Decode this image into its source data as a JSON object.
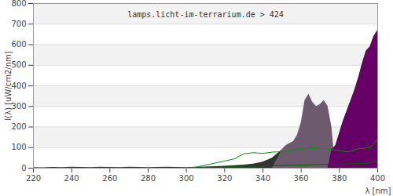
{
  "chart_data": {
    "type": "area",
    "title": "lamps.licht-im-terrarium.de > 424",
    "x_label": "λ [nm]",
    "y_label": "I(λ) [uW/cm2/nm]",
    "x": [
      220,
      225,
      230,
      235,
      240,
      245,
      250,
      255,
      260,
      265,
      270,
      275,
      280,
      285,
      290,
      295,
      300,
      305,
      310,
      315,
      320,
      325,
      330,
      335,
      340,
      345,
      350,
      352,
      354,
      356,
      358,
      360,
      362,
      364,
      366,
      368,
      370,
      372,
      374,
      376,
      378,
      380,
      382,
      384,
      386,
      388,
      390,
      392,
      394,
      396,
      398,
      400
    ],
    "series": [
      {
        "type": "area",
        "color": "#333333",
        "values": [
          3,
          2,
          4,
          3,
          5,
          4,
          3,
          5,
          4,
          3,
          5,
          4,
          3,
          4,
          5,
          4,
          3,
          5,
          6,
          8,
          10,
          12,
          15,
          20,
          30,
          50,
          90,
          null,
          null,
          null,
          null,
          null,
          null,
          null,
          null,
          null,
          null,
          null,
          null,
          null,
          null,
          null,
          null,
          null,
          null,
          null,
          null,
          null,
          null,
          null,
          null,
          null
        ]
      },
      {
        "type": "area",
        "color": "#6e5a6e",
        "values": [
          null,
          null,
          null,
          null,
          null,
          null,
          null,
          null,
          null,
          null,
          null,
          null,
          null,
          null,
          null,
          null,
          null,
          null,
          null,
          null,
          null,
          null,
          null,
          null,
          null,
          null,
          90,
          110,
          120,
          130,
          160,
          220,
          330,
          360,
          320,
          300,
          310,
          330,
          300,
          200,
          null,
          null,
          null,
          null,
          null,
          null,
          null,
          null,
          null,
          null,
          null,
          null
        ]
      },
      {
        "type": "area",
        "color": "#660066",
        "values": [
          null,
          null,
          null,
          null,
          null,
          null,
          null,
          null,
          null,
          null,
          null,
          null,
          null,
          null,
          null,
          null,
          null,
          null,
          null,
          null,
          null,
          null,
          null,
          null,
          null,
          null,
          null,
          null,
          null,
          null,
          null,
          null,
          null,
          null,
          null,
          null,
          null,
          null,
          null,
          90,
          110,
          170,
          230,
          280,
          330,
          380,
          440,
          510,
          570,
          590,
          640,
          670
        ]
      },
      {
        "type": "line",
        "color": "#009900",
        "values": [
          null,
          null,
          null,
          null,
          null,
          null,
          null,
          null,
          null,
          null,
          null,
          null,
          null,
          null,
          null,
          null,
          0,
          5,
          15,
          25,
          35,
          45,
          70,
          75,
          72,
          78,
          80,
          82,
          85,
          88,
          90,
          92,
          95,
          98,
          100,
          98,
          95,
          95,
          92,
          90,
          88,
          85,
          82,
          80,
          82,
          88,
          95,
          95,
          98,
          100,
          120,
          140
        ]
      },
      {
        "type": "line",
        "color": "#006600",
        "values": [
          null,
          null,
          null,
          null,
          null,
          null,
          null,
          null,
          null,
          null,
          null,
          null,
          null,
          null,
          null,
          null,
          0,
          2,
          4,
          5,
          6,
          8,
          9,
          10,
          11,
          12,
          13,
          13,
          14,
          14,
          15,
          15,
          16,
          16,
          17,
          17,
          18,
          18,
          18,
          19,
          19,
          20,
          20,
          21,
          21,
          22,
          22,
          23,
          24,
          26,
          30,
          35
        ]
      }
    ],
    "xlim": [
      220,
      400
    ],
    "xticks": [
      220,
      240,
      260,
      280,
      300,
      320,
      340,
      360,
      380,
      400
    ],
    "ylim": [
      0,
      800
    ],
    "yticks": [
      0,
      100,
      200,
      300,
      400,
      500,
      600,
      700,
      800
    ],
    "grid": true
  }
}
